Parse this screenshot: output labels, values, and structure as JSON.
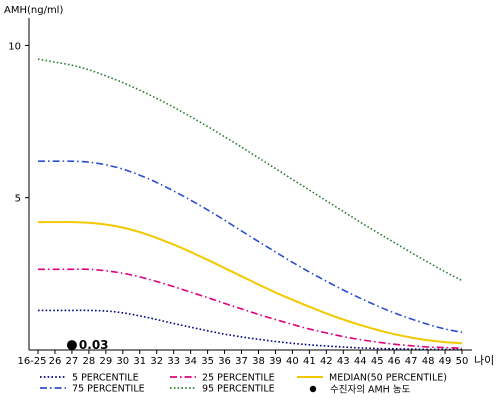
{
  "chart_data": {
    "type": "line",
    "ylabel": "AMH(ng/ml)",
    "xlabel": "나이",
    "ylim": [
      0,
      10.9
    ],
    "y_ticks": [
      {
        "value": 5,
        "label": "5"
      },
      {
        "value": 10,
        "label": "10"
      }
    ],
    "categories": [
      "16-25",
      "26",
      "27",
      "28",
      "29",
      "30",
      "31",
      "32",
      "33",
      "34",
      "35",
      "36",
      "37",
      "38",
      "39",
      "40",
      "41",
      "42",
      "43",
      "44",
      "45",
      "46",
      "47",
      "48",
      "49",
      "50"
    ],
    "grid": false,
    "legend_position": "bottom",
    "series": [
      {
        "name": "5 PERCENTILE",
        "color": "#000080",
        "style": "dotted",
        "values": [
          1.3,
          1.3,
          1.3,
          1.3,
          1.28,
          1.22,
          1.12,
          1.0,
          0.87,
          0.75,
          0.63,
          0.52,
          0.43,
          0.35,
          0.28,
          0.22,
          0.17,
          0.13,
          0.1,
          0.07,
          0.05,
          0.04,
          0.03,
          0.02,
          0.02,
          0.02
        ]
      },
      {
        "name": "25 PERCENTILE",
        "color": "#e0007a",
        "style": "dashdot",
        "values": [
          2.65,
          2.65,
          2.65,
          2.65,
          2.6,
          2.52,
          2.4,
          2.25,
          2.08,
          1.9,
          1.72,
          1.53,
          1.35,
          1.17,
          1.0,
          0.84,
          0.69,
          0.56,
          0.44,
          0.34,
          0.26,
          0.19,
          0.14,
          0.1,
          0.08,
          0.06
        ]
      },
      {
        "name": "MEDIAN(50 PERCENTILE)",
        "color": "#f2c800",
        "style": "solid",
        "values": [
          4.2,
          4.2,
          4.2,
          4.18,
          4.12,
          4.02,
          3.87,
          3.68,
          3.46,
          3.22,
          2.96,
          2.69,
          2.42,
          2.15,
          1.89,
          1.65,
          1.42,
          1.2,
          1.0,
          0.82,
          0.66,
          0.52,
          0.41,
          0.32,
          0.26,
          0.22
        ]
      },
      {
        "name": "75 PERCENTILE",
        "color": "#2a50d0",
        "style": "dashdot",
        "values": [
          6.2,
          6.2,
          6.2,
          6.17,
          6.08,
          5.94,
          5.74,
          5.5,
          5.22,
          4.92,
          4.6,
          4.26,
          3.91,
          3.56,
          3.22,
          2.88,
          2.56,
          2.26,
          1.97,
          1.7,
          1.45,
          1.22,
          1.02,
          0.84,
          0.69,
          0.58
        ]
      },
      {
        "name": "95 PERCENTILE",
        "color": "#2e7d32",
        "style": "dotted",
        "values": [
          9.55,
          9.45,
          9.35,
          9.2,
          9.0,
          8.78,
          8.53,
          8.26,
          7.97,
          7.66,
          7.34,
          7.0,
          6.66,
          6.31,
          5.96,
          5.6,
          5.25,
          4.9,
          4.55,
          4.2,
          3.86,
          3.53,
          3.2,
          2.88,
          2.57,
          2.28
        ]
      }
    ],
    "patient_marker": {
      "legend_label": "수진자의 AMH 농도",
      "category": "27",
      "value": 0.03,
      "label": "0.03",
      "color": "#000000"
    }
  }
}
